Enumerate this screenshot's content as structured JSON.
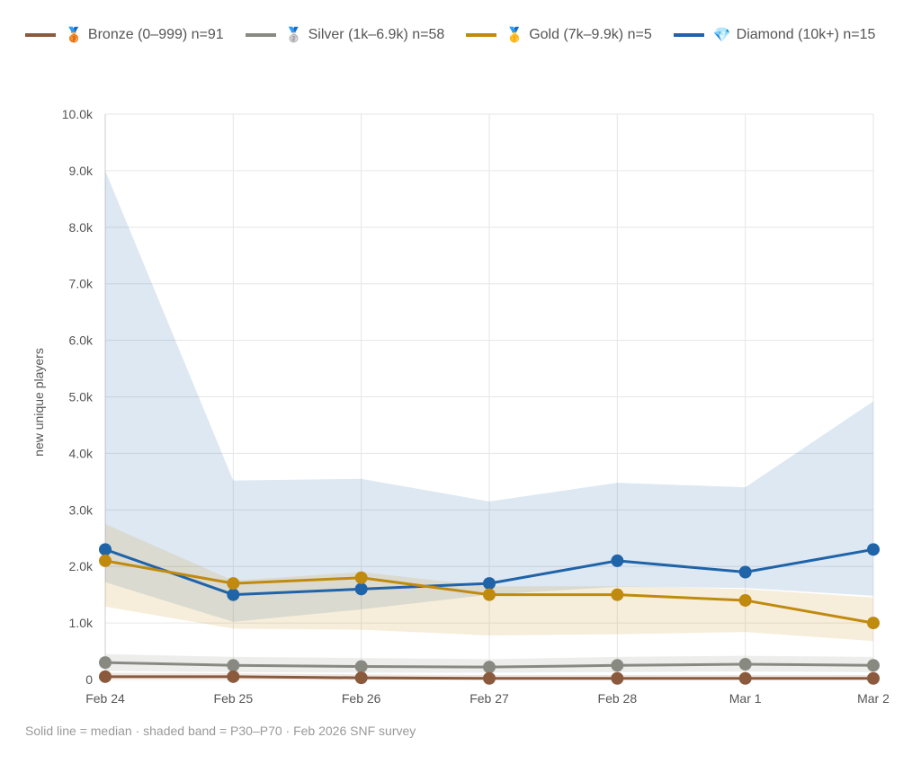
{
  "chart_data": {
    "type": "line",
    "ylabel": "new unique players",
    "ylim": [
      0,
      10000
    ],
    "yticks": [
      "0",
      "1.0k",
      "2.0k",
      "3.0k",
      "4.0k",
      "5.0k",
      "6.0k",
      "7.0k",
      "8.0k",
      "9.0k",
      "10.0k"
    ],
    "categories": [
      "Feb 24",
      "Feb 25",
      "Feb 26",
      "Feb 27",
      "Feb 28",
      "Mar 1",
      "Mar 2"
    ],
    "grid": true,
    "legend_position": "top",
    "series": [
      {
        "name": "Bronze (0–999) n=91",
        "icon": "🥉",
        "color": "#8b5a3c",
        "median": [
          50,
          50,
          30,
          20,
          20,
          20,
          20
        ],
        "p30": [
          20,
          20,
          10,
          10,
          10,
          10,
          10
        ],
        "p70": [
          120,
          110,
          90,
          80,
          80,
          80,
          80
        ]
      },
      {
        "name": "Silver (1k–6.9k) n=58",
        "icon": "🥈",
        "color": "#888a82",
        "median": [
          300,
          250,
          230,
          220,
          250,
          270,
          250
        ],
        "p30": [
          150,
          130,
          120,
          120,
          130,
          140,
          130
        ],
        "p70": [
          450,
          400,
          380,
          360,
          400,
          420,
          400
        ]
      },
      {
        "name": "Gold (7k–9.9k) n=5",
        "icon": "🥇",
        "color": "#c08a0e",
        "median": [
          2100,
          1700,
          1800,
          1500,
          1500,
          1400,
          1000
        ],
        "p30": [
          1290,
          900,
          880,
          780,
          800,
          840,
          680
        ],
        "p70": [
          2750,
          1750,
          1900,
          1650,
          1650,
          1600,
          1450
        ]
      },
      {
        "name": "Diamond (10k+) n=15",
        "icon": "💎",
        "color": "#1f63a8",
        "median": [
          2300,
          1500,
          1600,
          1700,
          2100,
          1900,
          2300
        ],
        "p30": [
          1720,
          1020,
          1240,
          1500,
          1640,
          1620,
          1480
        ],
        "p70": [
          9000,
          3520,
          3550,
          3150,
          3480,
          3400,
          4920
        ]
      }
    ]
  },
  "footnote": "Solid line = median · shaded band = P30–P70 · Feb 2026 SNF survey"
}
